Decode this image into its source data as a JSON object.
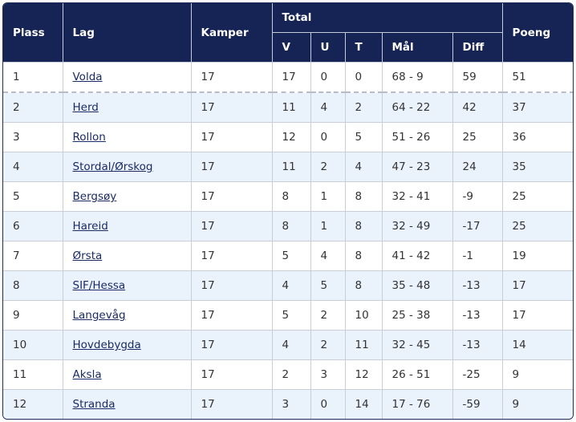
{
  "headers": {
    "plass": "Plass",
    "lag": "Lag",
    "kamper": "Kamper",
    "total": "Total",
    "v": "V",
    "u": "U",
    "t": "T",
    "mal": "Mål",
    "diff": "Diff",
    "poeng": "Poeng"
  },
  "rows": [
    {
      "plass": "1",
      "lag": "Volda",
      "kamper": "17",
      "v": "17",
      "u": "0",
      "t": "0",
      "mal": "68 - 9",
      "diff": "59",
      "poeng": "51"
    },
    {
      "plass": "2",
      "lag": "Herd",
      "kamper": "17",
      "v": "11",
      "u": "4",
      "t": "2",
      "mal": "64 - 22",
      "diff": "42",
      "poeng": "37"
    },
    {
      "plass": "3",
      "lag": "Rollon",
      "kamper": "17",
      "v": "12",
      "u": "0",
      "t": "5",
      "mal": "51 - 26",
      "diff": "25",
      "poeng": "36"
    },
    {
      "plass": "4",
      "lag": "Stordal/Ørskog",
      "kamper": "17",
      "v": "11",
      "u": "2",
      "t": "4",
      "mal": "47 - 23",
      "diff": "24",
      "poeng": "35"
    },
    {
      "plass": "5",
      "lag": "Bergsøy",
      "kamper": "17",
      "v": "8",
      "u": "1",
      "t": "8",
      "mal": "32 - 41",
      "diff": "-9",
      "poeng": "25"
    },
    {
      "plass": "6",
      "lag": "Hareid",
      "kamper": "17",
      "v": "8",
      "u": "1",
      "t": "8",
      "mal": "32 - 49",
      "diff": "-17",
      "poeng": "25"
    },
    {
      "plass": "7",
      "lag": "Ørsta",
      "kamper": "17",
      "v": "5",
      "u": "4",
      "t": "8",
      "mal": "41 - 42",
      "diff": "-1",
      "poeng": "19"
    },
    {
      "plass": "8",
      "lag": "SIF/Hessa",
      "kamper": "17",
      "v": "4",
      "u": "5",
      "t": "8",
      "mal": "35 - 48",
      "diff": "-13",
      "poeng": "17"
    },
    {
      "plass": "9",
      "lag": "Langevåg",
      "kamper": "17",
      "v": "5",
      "u": "2",
      "t": "10",
      "mal": "25 - 38",
      "diff": "-13",
      "poeng": "17"
    },
    {
      "plass": "10",
      "lag": "Hovdebygda",
      "kamper": "17",
      "v": "4",
      "u": "2",
      "t": "11",
      "mal": "32 - 45",
      "diff": "-13",
      "poeng": "14"
    },
    {
      "plass": "11",
      "lag": "Aksla",
      "kamper": "17",
      "v": "2",
      "u": "3",
      "t": "12",
      "mal": "26 - 51",
      "diff": "-25",
      "poeng": "9"
    },
    {
      "plass": "12",
      "lag": "Stranda",
      "kamper": "17",
      "v": "3",
      "u": "0",
      "t": "14",
      "mal": "17 - 76",
      "diff": "-59",
      "poeng": "9"
    }
  ],
  "colors": {
    "header_bg": "#162355",
    "row_alt_bg": "#eaf2fb",
    "link": "#1a2b66"
  }
}
